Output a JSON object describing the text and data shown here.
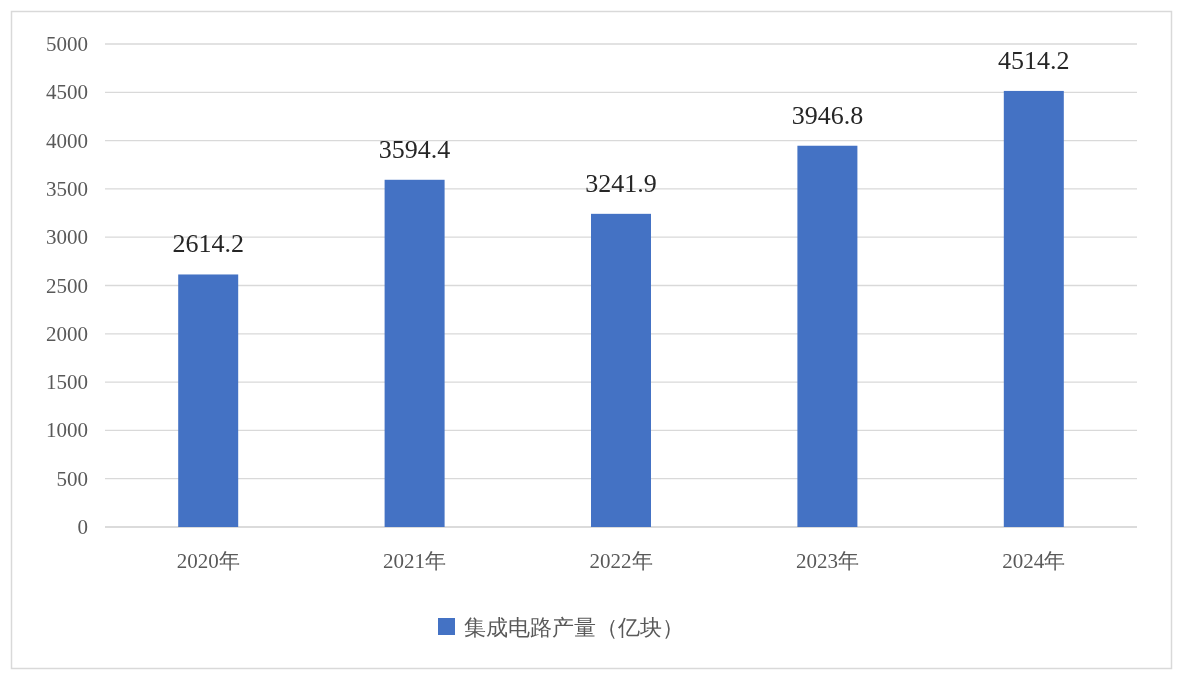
{
  "chart_data": {
    "type": "bar",
    "categories": [
      "2020年",
      "2021年",
      "2022年",
      "2023年",
      "2024年"
    ],
    "series": [
      {
        "name": "集成电路产量（亿块）",
        "color": "#4472c4",
        "values": [
          2614.2,
          3594.4,
          3241.9,
          3946.8,
          4514.2
        ]
      }
    ],
    "ylim": [
      0,
      5000
    ],
    "yticks": [
      0,
      500,
      1000,
      1500,
      2000,
      2500,
      3000,
      3500,
      4000,
      4500,
      5000
    ],
    "grid": "y",
    "legend": "bottom",
    "data_labels": true
  }
}
